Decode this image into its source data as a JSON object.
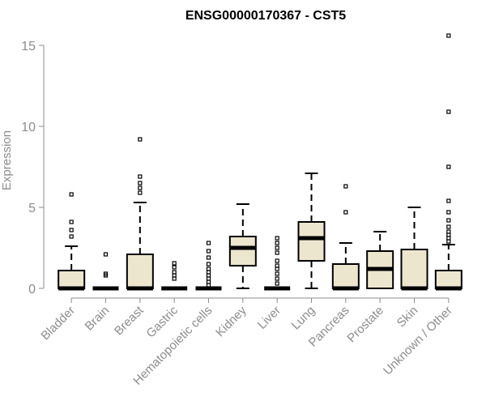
{
  "chart_data": {
    "type": "box",
    "title": "ENSG00000170367 - CST5",
    "ylabel": "Expression",
    "ylim": [
      0,
      15.5
    ],
    "yticks": [
      0,
      5,
      10,
      15
    ],
    "box_fill": "#ede6cf",
    "categories": [
      {
        "name": "Bladder",
        "min": 0,
        "q1": 0,
        "median": 0,
        "q3": 1.1,
        "max": 2.6,
        "outliers": [
          3.2,
          3.6,
          4.1,
          5.8
        ]
      },
      {
        "name": "Brain",
        "min": 0,
        "q1": 0,
        "median": 0,
        "q3": 0,
        "max": 0,
        "outliers": [
          0.8,
          0.9,
          2.1
        ]
      },
      {
        "name": "Breast",
        "min": 0,
        "q1": 0,
        "median": 0,
        "q3": 2.1,
        "max": 5.3,
        "outliers": [
          5.9,
          6.2,
          6.5,
          6.9,
          9.2
        ]
      },
      {
        "name": "Gastric",
        "min": 0,
        "q1": 0,
        "median": 0,
        "q3": 0,
        "max": 0,
        "outliers": [
          0.6,
          0.8,
          1.0,
          1.3,
          1.55
        ]
      },
      {
        "name": "Hematopoietic cells",
        "min": 0,
        "q1": 0,
        "median": 0,
        "q3": 0,
        "max": 0,
        "outliers": [
          0.2,
          0.4,
          0.6,
          0.8,
          1.0,
          1.2,
          1.5,
          1.9,
          2.3,
          2.8
        ]
      },
      {
        "name": "Kidney",
        "min": 0,
        "q1": 1.4,
        "median": 2.5,
        "q3": 3.2,
        "max": 5.2,
        "outliers": []
      },
      {
        "name": "Liver",
        "min": 0,
        "q1": 0,
        "median": 0,
        "q3": 0,
        "max": 0,
        "outliers": [
          0.3,
          0.6,
          0.9,
          1.2,
          1.4,
          1.7,
          2.2,
          2.5,
          2.8,
          3.1
        ]
      },
      {
        "name": "Lung",
        "min": 0,
        "q1": 1.7,
        "median": 3.1,
        "q3": 4.1,
        "max": 7.1,
        "outliers": []
      },
      {
        "name": "Pancreas",
        "min": 0,
        "q1": 0,
        "median": 0,
        "q3": 1.5,
        "max": 2.8,
        "outliers": [
          4.7,
          6.3
        ]
      },
      {
        "name": "Prostate",
        "min": 0,
        "q1": 0,
        "median": 1.2,
        "q3": 2.3,
        "max": 3.5,
        "outliers": []
      },
      {
        "name": "Skin",
        "min": 0,
        "q1": 0,
        "median": 0,
        "q3": 2.4,
        "max": 5.0,
        "outliers": []
      },
      {
        "name": "Unknown / Other",
        "min": 0,
        "q1": 0,
        "median": 0,
        "q3": 1.1,
        "max": 2.7,
        "outliers": [
          2.9,
          3.1,
          3.3,
          3.5,
          3.8,
          4.2,
          4.7,
          5.4,
          7.5,
          10.9,
          15.6
        ]
      }
    ]
  }
}
